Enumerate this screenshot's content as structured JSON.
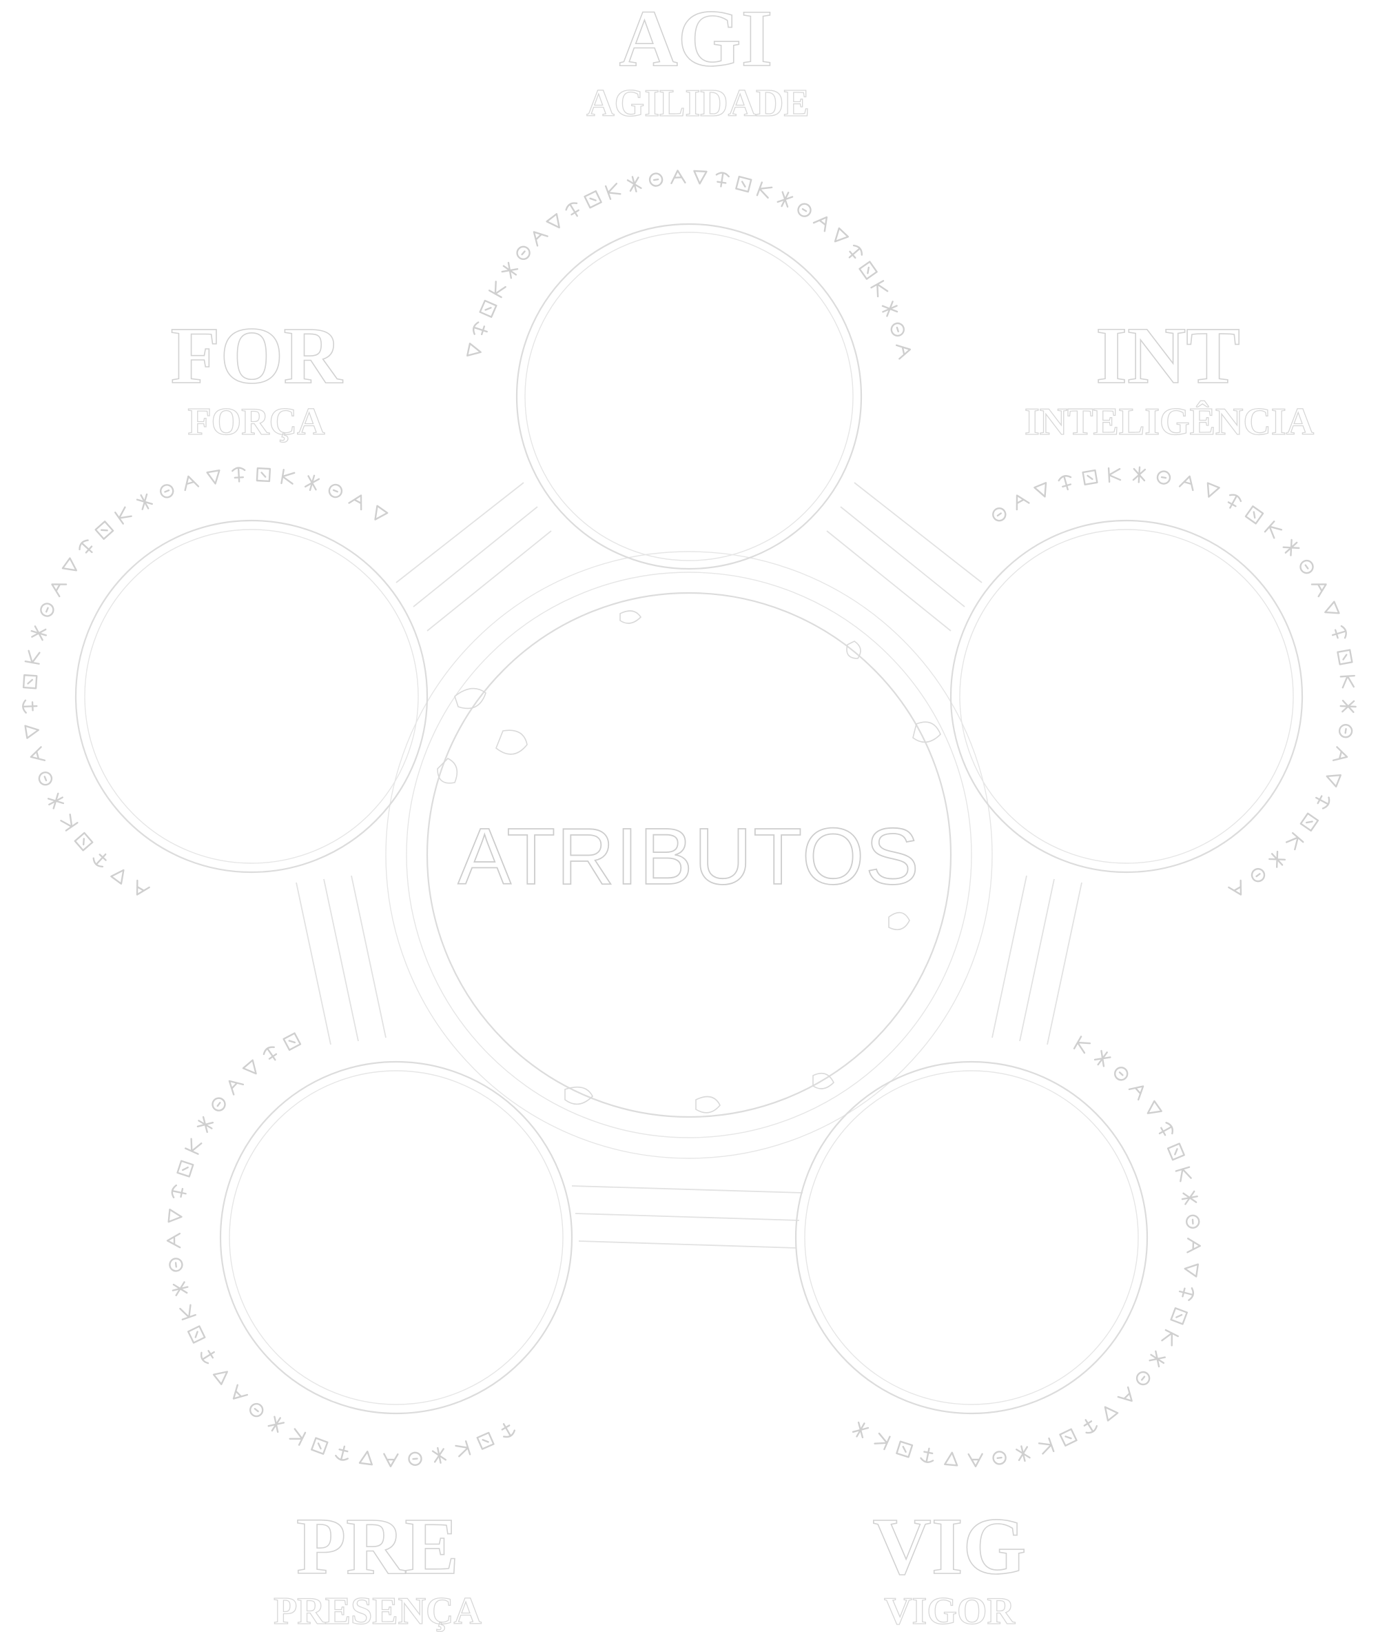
{
  "diagram": {
    "center_label": "ATRIBUTOS",
    "attributes": [
      {
        "key": "agi",
        "abbr": "AGI",
        "name": "AGILIDADE"
      },
      {
        "key": "int",
        "abbr": "INT",
        "name": "INTELIGÊNCIA"
      },
      {
        "key": "vig",
        "abbr": "VIG",
        "name": "VIGOR"
      },
      {
        "key": "pre",
        "abbr": "PRE",
        "name": "PRESENÇA"
      },
      {
        "key": "for",
        "abbr": "FOR",
        "name": "FORÇA"
      }
    ]
  }
}
